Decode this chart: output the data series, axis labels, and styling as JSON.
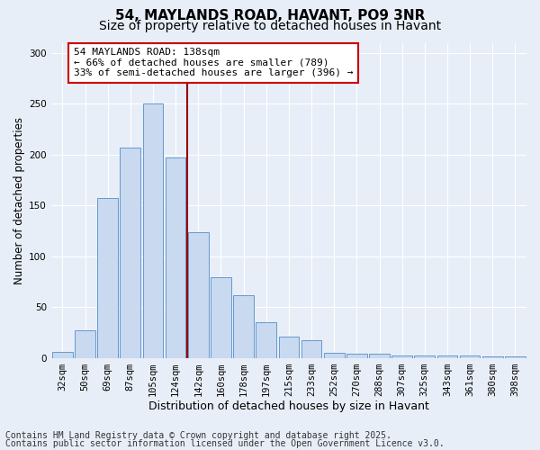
{
  "title": "54, MAYLANDS ROAD, HAVANT, PO9 3NR",
  "subtitle": "Size of property relative to detached houses in Havant",
  "xlabel": "Distribution of detached houses by size in Havant",
  "ylabel": "Number of detached properties",
  "categories": [
    "32sqm",
    "50sqm",
    "69sqm",
    "87sqm",
    "105sqm",
    "124sqm",
    "142sqm",
    "160sqm",
    "178sqm",
    "197sqm",
    "215sqm",
    "233sqm",
    "252sqm",
    "270sqm",
    "288sqm",
    "307sqm",
    "325sqm",
    "343sqm",
    "361sqm",
    "380sqm",
    "398sqm"
  ],
  "values": [
    6,
    27,
    157,
    207,
    250,
    197,
    124,
    80,
    62,
    35,
    21,
    18,
    5,
    4,
    4,
    3,
    3,
    3,
    3,
    2,
    2
  ],
  "bar_color": "#c8d9f0",
  "bar_edge_color": "#6699cc",
  "background_color": "#e8eef8",
  "grid_color": "#ffffff",
  "vline_color": "#990000",
  "annotation_text": "54 MAYLANDS ROAD: 138sqm\n← 66% of detached houses are smaller (789)\n33% of semi-detached houses are larger (396) →",
  "annotation_box_color": "#ffffff",
  "annotation_box_edge_color": "#cc0000",
  "ylim": [
    0,
    310
  ],
  "yticks": [
    0,
    50,
    100,
    150,
    200,
    250,
    300
  ],
  "footer_line1": "Contains HM Land Registry data © Crown copyright and database right 2025.",
  "footer_line2": "Contains public sector information licensed under the Open Government Licence v3.0.",
  "title_fontsize": 11,
  "subtitle_fontsize": 10,
  "xlabel_fontsize": 9,
  "ylabel_fontsize": 8.5,
  "tick_fontsize": 7.5,
  "annotation_fontsize": 8,
  "footer_fontsize": 7
}
